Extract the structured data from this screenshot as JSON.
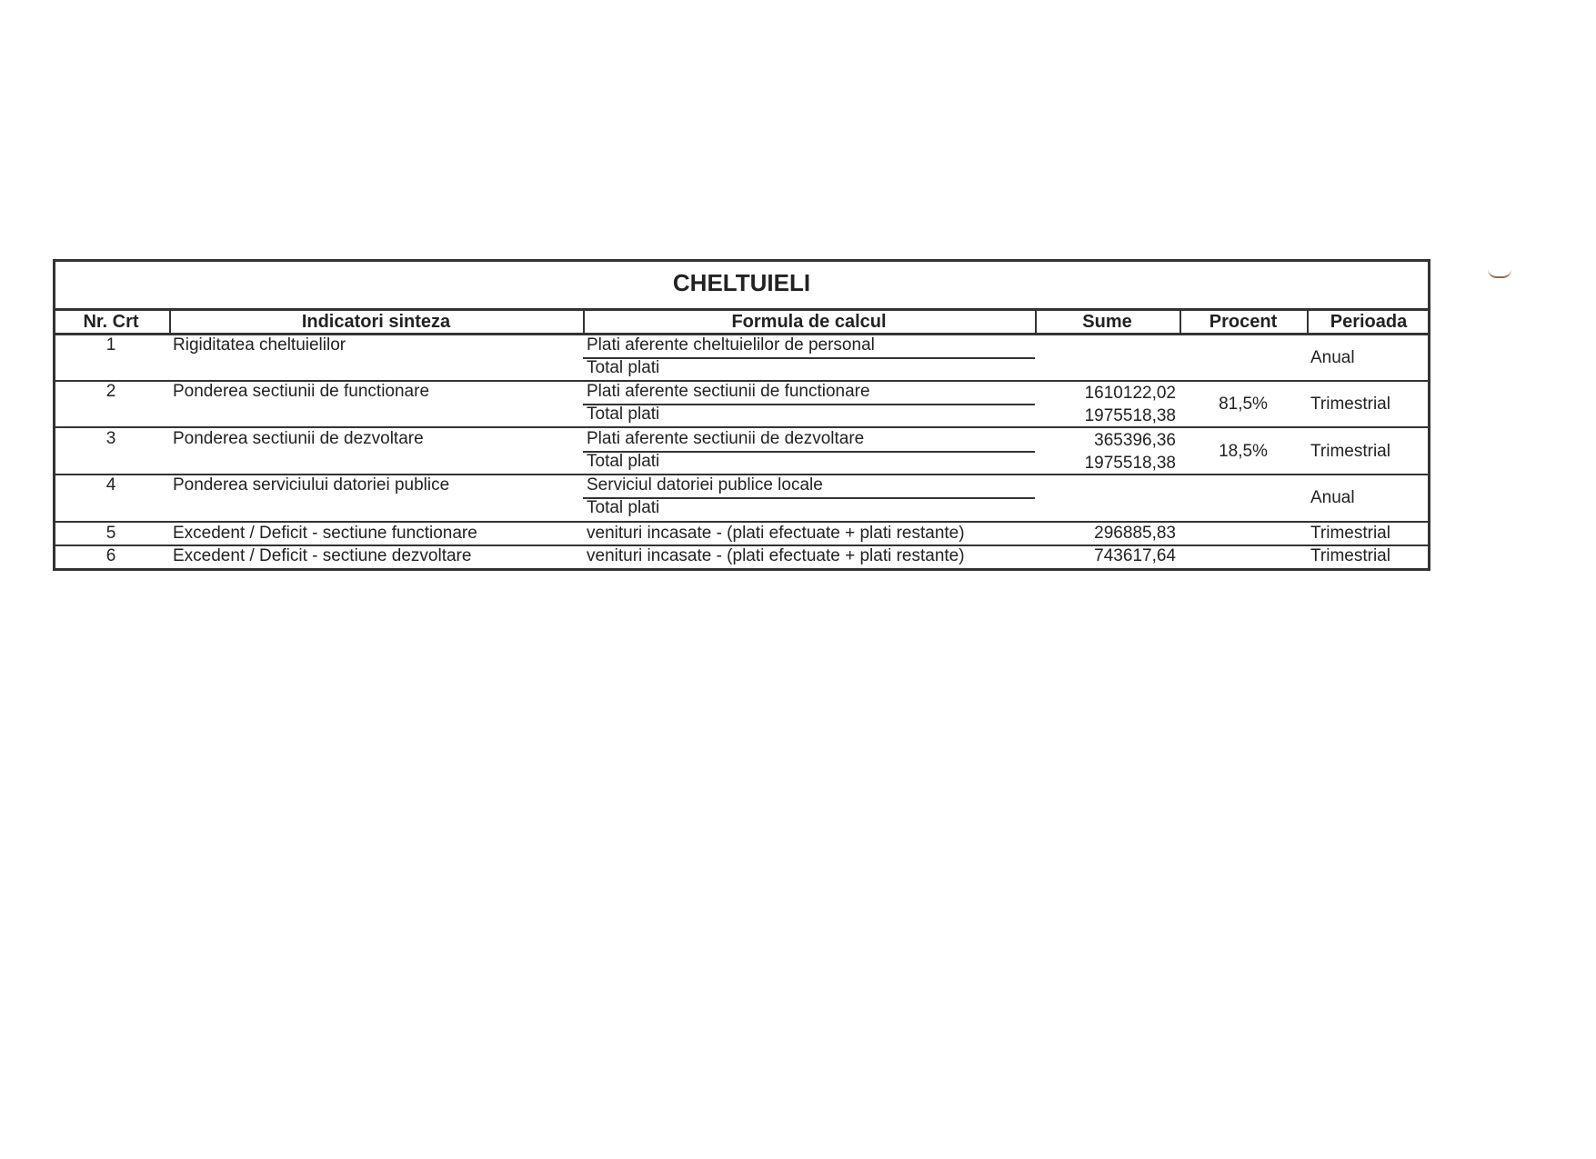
{
  "title": "CHELTUIELI",
  "headers": [
    "Nr. Crt",
    "Indicatori sinteza",
    "Formula de calcul",
    "Sume",
    "Procent",
    "Perioada"
  ],
  "rows": [
    {
      "nr": "1",
      "indicator": "Rigiditatea cheltuielilor",
      "formula_top": "Plati aferente cheltuielilor de personal",
      "formula_bottom": "Total plati",
      "suma_top": "",
      "suma_bottom": "",
      "procent": "",
      "perioada": "Anual"
    },
    {
      "nr": "2",
      "indicator": "Ponderea sectiunii de functionare",
      "formula_top": "Plati aferente sectiunii de functionare",
      "formula_bottom": "Total plati",
      "suma_top": "1610122,02",
      "suma_bottom": "1975518,38",
      "procent": "81,5%",
      "perioada": "Trimestrial"
    },
    {
      "nr": "3",
      "indicator": "Ponderea sectiunii de dezvoltare",
      "formula_top": "Plati aferente sectiunii de dezvoltare",
      "formula_bottom": "Total plati",
      "suma_top": "365396,36",
      "suma_bottom": "1975518,38",
      "procent": "18,5%",
      "perioada": "Trimestrial"
    },
    {
      "nr": "4",
      "indicator": "Ponderea serviciului datoriei publice",
      "formula_top": "Serviciul datoriei publice locale",
      "formula_bottom": "Total plati",
      "suma_top": "",
      "suma_bottom": "",
      "procent": "",
      "perioada": "Anual"
    },
    {
      "nr": "5",
      "indicator": "Excedent / Deficit - sectiune functionare",
      "formula": "venituri incasate - (plati efectuate + plati restante)",
      "suma": "296885,83",
      "perioada": "Trimestrial"
    },
    {
      "nr": "6",
      "indicator": "Excedent / Deficit - sectiune dezvoltare",
      "formula": "venituri incasate - (plati efectuate + plati restante)",
      "suma": "743617,64",
      "perioada": "Trimestrial"
    }
  ]
}
